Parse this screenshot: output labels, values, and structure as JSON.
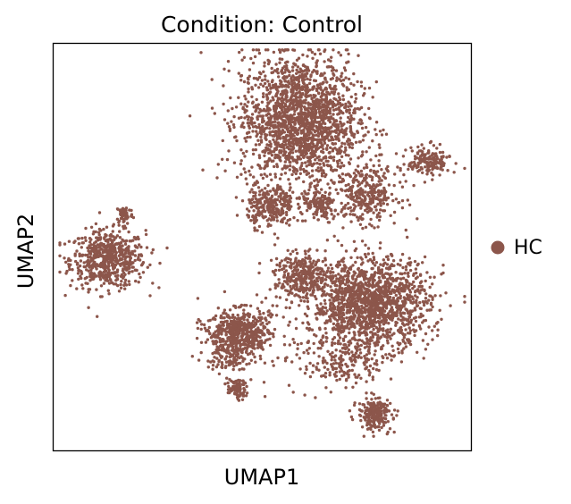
{
  "chart_data": {
    "type": "scatter",
    "title": "Condition: Control",
    "xlabel": "UMAP1",
    "ylabel": "UMAP2",
    "xlim": [
      0,
      1
    ],
    "ylim": [
      0,
      1
    ],
    "grid": false,
    "ticks": false,
    "legend_position": "right",
    "series": [
      {
        "name": "HC",
        "color": "#8c564b"
      }
    ],
    "clusters": [
      {
        "center": [
          0.13,
          0.47
        ],
        "spread": [
          0.045,
          0.035
        ],
        "n": 600
      },
      {
        "center": [
          0.17,
          0.58
        ],
        "spread": [
          0.01,
          0.012
        ],
        "n": 60
      },
      {
        "center": [
          0.59,
          0.81
        ],
        "spread": [
          0.07,
          0.08
        ],
        "n": 1900
      },
      {
        "center": [
          0.52,
          0.6
        ],
        "spread": [
          0.028,
          0.025
        ],
        "n": 250
      },
      {
        "center": [
          0.64,
          0.6
        ],
        "spread": [
          0.022,
          0.02
        ],
        "n": 120
      },
      {
        "center": [
          0.75,
          0.63
        ],
        "spread": [
          0.038,
          0.035
        ],
        "n": 320
      },
      {
        "center": [
          0.9,
          0.71
        ],
        "spread": [
          0.025,
          0.018
        ],
        "n": 170
      },
      {
        "center": [
          0.76,
          0.36
        ],
        "spread": [
          0.07,
          0.055
        ],
        "n": 1500
      },
      {
        "center": [
          0.6,
          0.43
        ],
        "spread": [
          0.035,
          0.025
        ],
        "n": 320
      },
      {
        "center": [
          0.42,
          0.26
        ],
        "spread": [
          0.028,
          0.03
        ],
        "n": 250
      },
      {
        "center": [
          0.47,
          0.28
        ],
        "spread": [
          0.022,
          0.025
        ],
        "n": 160
      },
      {
        "center": [
          0.44,
          0.31
        ],
        "spread": [
          0.04,
          0.02
        ],
        "n": 200
      },
      {
        "center": [
          0.77,
          0.09
        ],
        "spread": [
          0.02,
          0.02
        ],
        "n": 230
      },
      {
        "center": [
          0.44,
          0.15
        ],
        "spread": [
          0.012,
          0.012
        ],
        "n": 80
      },
      {
        "center": [
          0.55,
          0.3
        ],
        "spread": [
          0.08,
          0.08
        ],
        "n": 120
      },
      {
        "center": [
          0.7,
          0.22
        ],
        "spread": [
          0.04,
          0.03
        ],
        "n": 160
      }
    ]
  }
}
